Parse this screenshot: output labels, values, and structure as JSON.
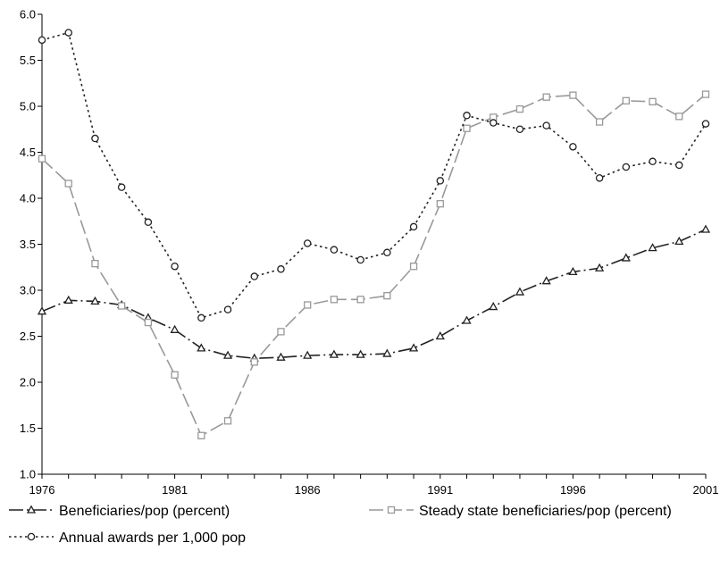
{
  "chart_data": {
    "type": "line",
    "title": "",
    "xlabel": "",
    "ylabel": "",
    "x": [
      1976,
      1977,
      1978,
      1979,
      1980,
      1981,
      1982,
      1983,
      1984,
      1985,
      1986,
      1987,
      1988,
      1989,
      1990,
      1991,
      1992,
      1993,
      1994,
      1995,
      1996,
      1997,
      1998,
      1999,
      2000,
      2001
    ],
    "xlim": [
      1976,
      2001
    ],
    "ylim": [
      1.0,
      6.0
    ],
    "x_ticks": [
      "1976",
      "1981",
      "1986",
      "1991",
      "1996",
      "2001"
    ],
    "y_ticks": [
      "1.0",
      "1.5",
      "2.0",
      "2.5",
      "3.0",
      "3.5",
      "4.0",
      "4.5",
      "5.0",
      "5.5",
      "6.0"
    ],
    "grid": false,
    "legend_position": "bottom",
    "series": [
      {
        "name": "Beneficiaries/pop (percent)",
        "marker": "triangle",
        "line_style": "long-dash-dot",
        "color": "#222222",
        "values": [
          2.77,
          2.89,
          2.88,
          2.84,
          2.7,
          2.57,
          2.37,
          2.29,
          2.26,
          2.27,
          2.29,
          2.3,
          2.3,
          2.31,
          2.37,
          2.5,
          2.67,
          2.82,
          2.98,
          3.1,
          3.2,
          3.24,
          3.35,
          3.46,
          3.53,
          3.66
        ]
      },
      {
        "name": "Steady state beneficiaries/pop (percent)",
        "marker": "square",
        "line_style": "long-dash",
        "color": "#999999",
        "values": [
          4.43,
          4.16,
          3.29,
          2.83,
          2.65,
          2.08,
          1.42,
          1.58,
          2.22,
          2.55,
          2.84,
          2.9,
          2.9,
          2.94,
          3.26,
          3.94,
          4.76,
          4.88,
          4.97,
          5.1,
          5.12,
          4.83,
          5.06,
          5.05,
          4.89,
          5.13
        ]
      },
      {
        "name": "Annual awards per 1,000 pop",
        "marker": "circle",
        "line_style": "dotted",
        "color": "#222222",
        "values": [
          5.72,
          5.8,
          4.65,
          4.12,
          3.74,
          3.26,
          2.7,
          2.79,
          3.15,
          3.23,
          3.51,
          3.44,
          3.33,
          3.41,
          3.69,
          4.19,
          4.9,
          4.82,
          4.75,
          4.79,
          4.56,
          4.22,
          4.34,
          4.4,
          4.36,
          4.81
        ]
      }
    ]
  }
}
